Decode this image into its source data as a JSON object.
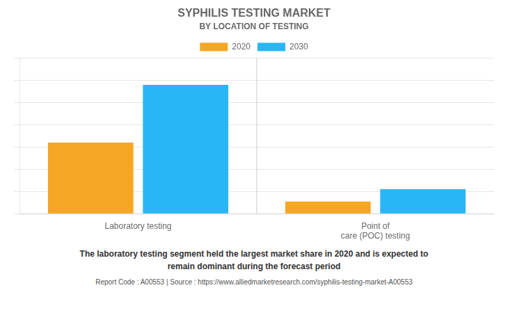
{
  "chart_data": {
    "type": "bar",
    "title": "SYPHILIS TESTING MARKET",
    "subtitle": "BY LOCATION OF TESTING",
    "categories": [
      "Laboratory testing",
      "Point of\ncare (POC) testing"
    ],
    "series": [
      {
        "name": "2020",
        "color": "#F5A623",
        "values": [
          3.2,
          0.55
        ]
      },
      {
        "name": "2030",
        "color": "#29B6F6",
        "values": [
          5.8,
          1.1
        ]
      }
    ],
    "ylim": [
      0,
      7
    ],
    "yticks": [
      0,
      1,
      2,
      3,
      4,
      5,
      6,
      7
    ],
    "grid": true,
    "legend": "top",
    "tick_labels": "x",
    "annotations": [
      "The laboratory testing segment held the largest market share in 2020 and is expected to\nremain dominant during the forecast period",
      "Report Code : A00553  |  Source : https://www.alliedmarketresearch.com/syphilis-testing-market-A00553"
    ]
  }
}
